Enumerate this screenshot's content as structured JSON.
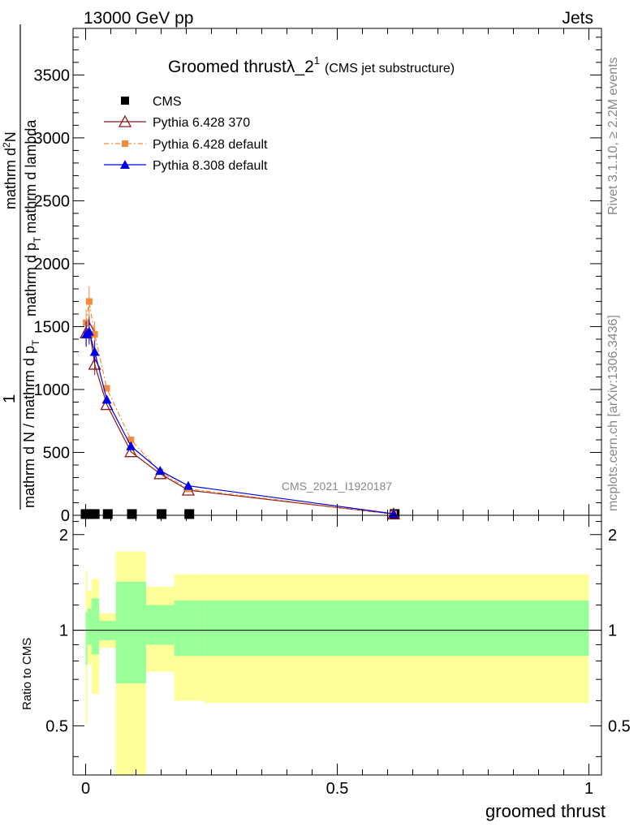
{
  "header": {
    "left": "13000 GeV pp",
    "right": "Jets"
  },
  "side_labels": {
    "top": "Rivet 3.1.10, ≥ 2.2M events",
    "bottom": "mcplots.cern.ch [arXiv:1306.3436]"
  },
  "chart_data": {
    "type": "line",
    "title": "Groomed thrustλ_2",
    "title_sup": "1",
    "title_suffix": "(CMS jet substructure)",
    "analysis_label": "CMS_2021_I1920187",
    "xlabel": "groomed thrust",
    "ylabel_lines": [
      "mathrm d N / mathrm d p_T mathrm d lambda",
      "1",
      "mathrm d N / mathrm d p_T",
      "mathrm d^2N"
    ],
    "ylabel_parts": {
      "frac_one": "1",
      "frac_den": "mathrm d N / mathrm d p",
      "frac_den_sub": "T",
      "num_line1": "mathrm d",
      "num_sup": "2",
      "num_n": "N",
      "num_line2": "mathrm d p",
      "num_line2_sub": "T",
      "num_line2_tail": "mathrm d lambda"
    },
    "xlim": [
      -0.025,
      1.025
    ],
    "ylim": [
      0,
      3870
    ],
    "x_ticks": [
      0,
      0.5,
      1
    ],
    "x_tick_labels": [
      "0",
      "0.5",
      "1"
    ],
    "y_ticks": [
      0,
      500,
      1000,
      1500,
      2000,
      2500,
      3000,
      3500
    ],
    "y_tick_labels": [
      "0",
      "500",
      "1000",
      "1500",
      "2000",
      "2500",
      "3000",
      "3500"
    ],
    "legend_position": "top-left",
    "series": [
      {
        "name": "CMS",
        "color": "#000000",
        "marker": "square",
        "x": [
          0.0,
          0.007,
          0.018,
          0.044,
          0.092,
          0.151,
          0.206,
          0.614
        ],
        "y": [
          10,
          10,
          10,
          10,
          10,
          10,
          10,
          10
        ]
      },
      {
        "name": "Pythia 6.428 370",
        "color": "#8b1a1a",
        "marker": "triangle-open",
        "x": [
          0.001,
          0.007,
          0.018,
          0.042,
          0.09,
          0.148,
          0.204,
          0.612
        ],
        "y": [
          1450,
          1490,
          1200,
          880,
          505,
          330,
          200,
          10
        ]
      },
      {
        "name": "Pythia 6.428 default",
        "color": "#f58a3c",
        "marker": "square-small",
        "x": [
          0.001,
          0.007,
          0.018,
          0.042,
          0.09,
          0.148,
          0.204,
          0.612
        ],
        "y": [
          1530,
          1700,
          1440,
          1010,
          600,
          345,
          210,
          10
        ]
      },
      {
        "name": "Pythia 8.308 default",
        "color": "#0000e6",
        "marker": "triangle",
        "x": [
          0.001,
          0.007,
          0.018,
          0.042,
          0.09,
          0.148,
          0.204,
          0.612
        ],
        "y": [
          1440,
          1460,
          1300,
          920,
          550,
          355,
          235,
          12
        ]
      }
    ],
    "ratio": {
      "ylabel": "Ratio to CMS",
      "ylim": [
        0.35,
        2.3
      ],
      "log_scale": true,
      "y_ticks": [
        0.5,
        1,
        2
      ],
      "y_tick_labels": [
        "0.5",
        "1",
        "2"
      ],
      "inner_color": "#99ff99",
      "outer_color": "#ffff99",
      "bands": [
        {
          "x0": 0.0,
          "x1": 0.0035,
          "inner": [
            0.78,
            1.14
          ],
          "outer": [
            0.51,
            1.55
          ]
        },
        {
          "x0": 0.0035,
          "x1": 0.0115,
          "inner": [
            0.9,
            1.17
          ],
          "outer": [
            0.78,
            1.33
          ]
        },
        {
          "x0": 0.0115,
          "x1": 0.027,
          "inner": [
            0.84,
            1.26
          ],
          "outer": [
            0.63,
            1.45
          ]
        },
        {
          "x0": 0.027,
          "x1": 0.06,
          "inner": [
            0.93,
            1.07
          ],
          "outer": [
            0.88,
            1.13
          ]
        },
        {
          "x0": 0.06,
          "x1": 0.12,
          "inner": [
            0.68,
            1.42
          ],
          "outer": [
            0.3,
            1.77
          ]
        },
        {
          "x0": 0.12,
          "x1": 0.176,
          "inner": [
            0.9,
            1.2
          ],
          "outer": [
            0.74,
            1.37
          ]
        },
        {
          "x0": 0.176,
          "x1": 0.236,
          "inner": [
            0.83,
            1.24
          ],
          "outer": [
            0.6,
            1.5
          ]
        },
        {
          "x0": 0.236,
          "x1": 1.0,
          "inner": [
            0.83,
            1.24
          ],
          "outer": [
            0.59,
            1.5
          ]
        }
      ]
    }
  }
}
